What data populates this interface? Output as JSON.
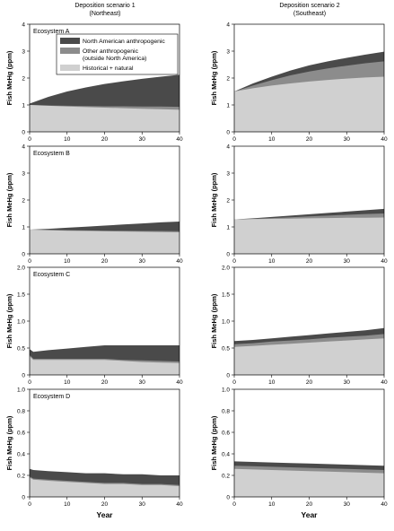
{
  "colors": {
    "north_american": "#4a4a4a",
    "other": "#8c8c8c",
    "historical": "#d0d0d0"
  },
  "columns": [
    {
      "title_line1": "Deposition scenario 1",
      "title_line2": "(Northeast)"
    },
    {
      "title_line1": "Deposition scenario 2",
      "title_line2": "(Southeast)"
    }
  ],
  "legend": {
    "items": [
      {
        "label_lines": [
          "North American anthropogenic"
        ],
        "color_key": "north_american"
      },
      {
        "label_lines": [
          "Other anthropogenic",
          "(outside North America)"
        ],
        "color_key": "other"
      },
      {
        "label_lines": [
          "Historical + natural"
        ],
        "color_key": "historical"
      }
    ]
  },
  "chart_data": [
    {
      "type": "area",
      "row": 0,
      "col": 0,
      "panel_label": "Ecosystem A",
      "xlabel": "",
      "ylabel": "Fish MeHg (ppm)",
      "xlim": [
        0,
        40
      ],
      "ylim": [
        0,
        4
      ],
      "yticks": [
        "0",
        "1",
        "2",
        "3",
        "4"
      ],
      "xticks": [
        "0",
        "10",
        "20",
        "30",
        "40"
      ],
      "x": [
        0,
        5,
        10,
        15,
        20,
        25,
        30,
        35,
        40
      ],
      "series": [
        {
          "name": "Historical + natural",
          "values": [
            1.0,
            0.97,
            0.94,
            0.92,
            0.9,
            0.88,
            0.86,
            0.84,
            0.82
          ]
        },
        {
          "name": "Other anthropogenic (outside North America)",
          "values": [
            1.0,
            0.98,
            0.97,
            0.96,
            0.95,
            0.95,
            0.94,
            0.94,
            0.93
          ]
        },
        {
          "name": "North American anthropogenic",
          "values": [
            1.05,
            1.3,
            1.5,
            1.65,
            1.78,
            1.88,
            1.97,
            2.05,
            2.12
          ]
        }
      ]
    },
    {
      "type": "area",
      "row": 0,
      "col": 1,
      "panel_label": "",
      "xlabel": "",
      "ylabel": "Fish MeHg (ppm)",
      "xlim": [
        0,
        40
      ],
      "ylim": [
        0,
        4
      ],
      "yticks": [
        "0",
        "1",
        "2",
        "3",
        "4"
      ],
      "xticks": [
        "0",
        "10",
        "20",
        "30",
        "40"
      ],
      "x": [
        0,
        5,
        10,
        15,
        20,
        25,
        30,
        35,
        40
      ],
      "series": [
        {
          "name": "Historical + natural",
          "values": [
            1.5,
            1.62,
            1.72,
            1.8,
            1.87,
            1.93,
            1.98,
            2.02,
            2.05
          ]
        },
        {
          "name": "Other anthropogenic (outside North America)",
          "values": [
            1.5,
            1.72,
            1.92,
            2.1,
            2.24,
            2.36,
            2.46,
            2.55,
            2.62
          ]
        },
        {
          "name": "North American anthropogenic",
          "values": [
            1.5,
            1.8,
            2.05,
            2.28,
            2.47,
            2.62,
            2.75,
            2.87,
            2.98
          ]
        }
      ]
    },
    {
      "type": "area",
      "row": 1,
      "col": 0,
      "panel_label": "Ecosystem B",
      "xlabel": "",
      "ylabel": "Fish MeHg (ppm)",
      "xlim": [
        0,
        40
      ],
      "ylim": [
        0,
        4
      ],
      "yticks": [
        "0",
        "1",
        "2",
        "3",
        "4"
      ],
      "xticks": [
        "0",
        "10",
        "20",
        "30",
        "40"
      ],
      "x": [
        0,
        5,
        10,
        15,
        20,
        25,
        30,
        35,
        40
      ],
      "series": [
        {
          "name": "Historical + natural",
          "values": [
            0.9,
            0.88,
            0.86,
            0.85,
            0.84,
            0.83,
            0.82,
            0.81,
            0.8
          ]
        },
        {
          "name": "Other anthropogenic (outside North America)",
          "values": [
            0.9,
            0.89,
            0.88,
            0.87,
            0.86,
            0.86,
            0.85,
            0.85,
            0.84
          ]
        },
        {
          "name": "North American anthropogenic",
          "values": [
            0.9,
            0.93,
            0.97,
            1.01,
            1.05,
            1.09,
            1.13,
            1.17,
            1.2
          ]
        }
      ]
    },
    {
      "type": "area",
      "row": 1,
      "col": 1,
      "panel_label": "",
      "xlabel": "",
      "ylabel": "Fish MeHg (ppm)",
      "xlim": [
        0,
        40
      ],
      "ylim": [
        0,
        4
      ],
      "yticks": [
        "0",
        "1",
        "2",
        "3",
        "4"
      ],
      "xticks": [
        "0",
        "10",
        "20",
        "30",
        "40"
      ],
      "x": [
        0,
        5,
        10,
        15,
        20,
        25,
        30,
        35,
        40
      ],
      "series": [
        {
          "name": "Historical + natural",
          "values": [
            1.28,
            1.29,
            1.3,
            1.31,
            1.32,
            1.33,
            1.34,
            1.34,
            1.35
          ]
        },
        {
          "name": "Other anthropogenic (outside North America)",
          "values": [
            1.28,
            1.3,
            1.33,
            1.36,
            1.39,
            1.42,
            1.45,
            1.48,
            1.5
          ]
        },
        {
          "name": "North American anthropogenic",
          "values": [
            1.28,
            1.32,
            1.37,
            1.42,
            1.47,
            1.52,
            1.57,
            1.62,
            1.67
          ]
        }
      ]
    },
    {
      "type": "area",
      "row": 2,
      "col": 0,
      "panel_label": "Ecosystem C",
      "xlabel": "",
      "ylabel": "Fish MeHg (ppm)",
      "xlim": [
        0,
        40
      ],
      "ylim": [
        0,
        2.0
      ],
      "yticks": [
        "0",
        "0.5",
        "1.0",
        "1.5",
        "2.0"
      ],
      "xticks": [
        "0",
        "10",
        "20",
        "30",
        "40"
      ],
      "x": [
        0,
        1,
        5,
        10,
        15,
        20,
        25,
        30,
        35,
        40
      ],
      "series": [
        {
          "name": "Historical + natural",
          "values": [
            0.35,
            0.28,
            0.28,
            0.28,
            0.28,
            0.28,
            0.26,
            0.24,
            0.23,
            0.22
          ]
        },
        {
          "name": "Other anthropogenic (outside North America)",
          "values": [
            0.37,
            0.3,
            0.3,
            0.3,
            0.3,
            0.3,
            0.28,
            0.27,
            0.26,
            0.25
          ]
        },
        {
          "name": "North American anthropogenic",
          "values": [
            0.48,
            0.43,
            0.46,
            0.49,
            0.52,
            0.55,
            0.55,
            0.55,
            0.55,
            0.55
          ]
        }
      ]
    },
    {
      "type": "area",
      "row": 2,
      "col": 1,
      "panel_label": "",
      "xlabel": "",
      "ylabel": "Fish MeHg (ppm)",
      "xlim": [
        0,
        40
      ],
      "ylim": [
        0,
        2.0
      ],
      "yticks": [
        "0",
        "0.5",
        "1.0",
        "1.5",
        "2.0"
      ],
      "xticks": [
        "0",
        "10",
        "20",
        "30",
        "40"
      ],
      "x": [
        0,
        5,
        10,
        15,
        20,
        25,
        30,
        35,
        40
      ],
      "series": [
        {
          "name": "Historical + natural",
          "values": [
            0.52,
            0.54,
            0.56,
            0.58,
            0.6,
            0.62,
            0.64,
            0.66,
            0.68
          ]
        },
        {
          "name": "Other anthropogenic (outside North America)",
          "values": [
            0.57,
            0.59,
            0.62,
            0.64,
            0.66,
            0.69,
            0.71,
            0.73,
            0.76
          ]
        },
        {
          "name": "North American anthropogenic",
          "values": [
            0.63,
            0.65,
            0.68,
            0.71,
            0.74,
            0.77,
            0.8,
            0.83,
            0.87
          ]
        }
      ]
    },
    {
      "type": "area",
      "row": 3,
      "col": 0,
      "panel_label": "Ecosystem D",
      "xlabel": "Year",
      "ylabel": "Fish MeHg (ppm)",
      "xlim": [
        0,
        40
      ],
      "ylim": [
        0,
        1.0
      ],
      "yticks": [
        "0",
        "0.2",
        "0.4",
        "0.6",
        "0.8",
        "1.0"
      ],
      "xticks": [
        "0",
        "10",
        "20",
        "30",
        "40"
      ],
      "x": [
        0,
        1,
        5,
        10,
        15,
        20,
        25,
        30,
        35,
        40
      ],
      "series": [
        {
          "name": "Historical + natural",
          "values": [
            0.18,
            0.16,
            0.15,
            0.14,
            0.13,
            0.12,
            0.12,
            0.11,
            0.11,
            0.1
          ]
        },
        {
          "name": "Other anthropogenic (outside North America)",
          "values": [
            0.19,
            0.17,
            0.16,
            0.15,
            0.14,
            0.13,
            0.13,
            0.12,
            0.12,
            0.11
          ]
        },
        {
          "name": "North American anthropogenic",
          "values": [
            0.26,
            0.25,
            0.24,
            0.23,
            0.22,
            0.22,
            0.21,
            0.21,
            0.2,
            0.2
          ]
        }
      ]
    },
    {
      "type": "area",
      "row": 3,
      "col": 1,
      "panel_label": "",
      "xlabel": "Year",
      "ylabel": "Fish MeHg (ppm)",
      "xlim": [
        0,
        40
      ],
      "ylim": [
        0,
        1.0
      ],
      "yticks": [
        "0",
        "0.2",
        "0.4",
        "0.6",
        "0.8",
        "1.0"
      ],
      "xticks": [
        "0",
        "10",
        "20",
        "30",
        "40"
      ],
      "x": [
        0,
        5,
        10,
        15,
        20,
        25,
        30,
        35,
        40
      ],
      "series": [
        {
          "name": "Historical + natural",
          "values": [
            0.26,
            0.255,
            0.25,
            0.245,
            0.24,
            0.235,
            0.23,
            0.225,
            0.22
          ]
        },
        {
          "name": "Other anthropogenic (outside North America)",
          "values": [
            0.29,
            0.285,
            0.28,
            0.275,
            0.27,
            0.265,
            0.26,
            0.255,
            0.25
          ]
        },
        {
          "name": "North American anthropogenic",
          "values": [
            0.33,
            0.325,
            0.32,
            0.315,
            0.31,
            0.305,
            0.3,
            0.295,
            0.29
          ]
        }
      ]
    }
  ]
}
